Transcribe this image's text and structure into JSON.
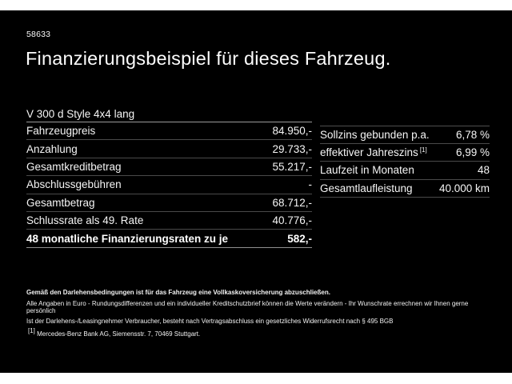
{
  "page": {
    "ref_number": "58633",
    "title": "Finanzierungsbeispiel für dieses Fahrzeug.",
    "model": "V 300 d Style 4x4 lang"
  },
  "finance_table": {
    "rows": [
      {
        "label": "Fahrzeugpreis",
        "value": "84.950,-"
      },
      {
        "label": "Anzahlung",
        "value": "29.733,-"
      },
      {
        "label": "Gesamtkreditbetrag",
        "value": "55.217,-"
      },
      {
        "label": "Abschlussgebühren",
        "value": "-"
      },
      {
        "label": "Gesamtbetrag",
        "value": "68.712,-"
      },
      {
        "label": "Schlussrate als 49. Rate",
        "value": "40.776,-"
      }
    ],
    "total_row": {
      "label": "48 monatliche Finanzierungsraten zu je",
      "value": "582,-"
    }
  },
  "conditions_table": {
    "rows": [
      {
        "label": "Sollzins gebunden p.a.",
        "marker": "",
        "value": "6,78 %"
      },
      {
        "label": "effektiver Jahreszins",
        "marker": "[1]",
        "value": "6,99 %"
      },
      {
        "label": "Laufzeit in Monaten",
        "marker": "",
        "value": "48"
      },
      {
        "label": "Gesamtlaufleistung",
        "marker": "",
        "value": "40.000 km"
      }
    ]
  },
  "footnotes": {
    "insurance": "Gemäß den Darlehensbedingungen ist für das Fahrzeug eine Vollkaskoversicherung abzuschließen.",
    "disclaimer": "Alle Angaben in Euro - Rundungsdifferenzen und ein individueller Kreditschutzbrief können die Werte verändern - Ihr Wunschrate errechnen wir Ihnen gerne persönlich",
    "legal": "Ist der Darlehens-/Leasingnehmer Verbraucher, besteht nach Vertragsabschluss ein gesetzliches Widerrufsrecht nach § 495 BGB",
    "bank_marker": "[1]",
    "bank": "Mercedes-Benz Bank AG, Siemensstr. 7, 70469 Stuttgart."
  },
  "colors": {
    "background": "#000000",
    "letterbox": "#ffffff",
    "text": "#ffffff",
    "divider": "#4a4a4a",
    "divider_bright": "#9a9a9a"
  }
}
